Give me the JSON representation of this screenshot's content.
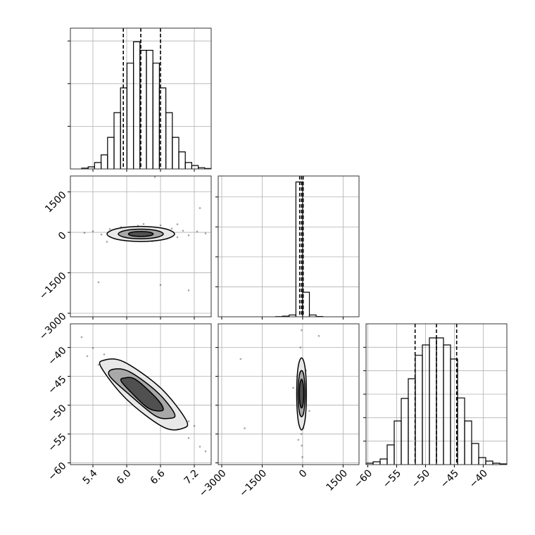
{
  "chart_data": {
    "type": "corner",
    "grid": true,
    "hist_color": "#000000",
    "point_color": "#000000",
    "variables": [
      {
        "lim": [
          5.0,
          7.5
        ],
        "ticks": [
          5.4,
          {
            "value": 6.0,
            "label": "6.0"
          },
          6.6,
          7.2
        ]
      },
      {
        "lim": [
          -3130,
          2090
        ],
        "ticks": [
          {
            "value": -3000,
            "label": "−3000"
          },
          {
            "value": -1500,
            "label": "−1500"
          },
          0,
          1500
        ]
      },
      {
        "lim": [
          -60.3,
          -35.9
        ],
        "ticks": [
          {
            "value": -60,
            "label": "−60"
          },
          {
            "value": -55,
            "label": "−55"
          },
          {
            "value": -50,
            "label": "−50"
          },
          {
            "value": -45,
            "label": "−45"
          },
          {
            "value": -40,
            "label": "−40"
          }
        ]
      }
    ],
    "histograms": [
      {
        "bins": [
          5.2,
          5.315,
          5.43,
          5.545,
          5.66,
          5.775,
          5.89,
          6.005,
          6.12,
          6.235,
          6.35,
          6.465,
          6.58,
          6.695,
          6.81,
          6.925,
          7.04,
          7.155,
          7.27,
          7.385,
          7.5
        ],
        "counts": [
          20,
          50,
          150,
          330,
          740,
          1320,
          1900,
          2480,
          2980,
          2780,
          2780,
          2480,
          1900,
          1320,
          740,
          400,
          150,
          80,
          30,
          10
        ],
        "ylim": [
          0,
          3300
        ],
        "yticks": [
          1000,
          2000,
          3000
        ],
        "quantiles": [
          5.94,
          6.25,
          6.6
        ]
      },
      {
        "bins": [
          -1000,
          -750,
          -500,
          -250,
          0,
          250,
          500,
          750
        ],
        "counts": [
          5,
          20,
          60,
          4500,
          820,
          60,
          10
        ],
        "ylim": [
          0,
          4700
        ],
        "yticks": [
          1000,
          2000,
          3000,
          4000
        ],
        "quantiles": [
          -110,
          -40,
          20
        ]
      },
      {
        "bins": [
          -60.3,
          -59.08,
          -57.86,
          -56.64,
          -55.42,
          -54.2,
          -52.98,
          -51.76,
          -50.54,
          -49.32,
          -48.1,
          -46.88,
          -45.66,
          -44.44,
          -43.22,
          -42.0,
          -40.78,
          -39.56,
          -38.34,
          -37.12,
          -35.9
        ],
        "counts": [
          30,
          60,
          120,
          420,
          930,
          1410,
          1830,
          2330,
          2550,
          2700,
          2700,
          2550,
          2250,
          1420,
          930,
          450,
          150,
          75,
          30,
          15
        ],
        "ylim": [
          0,
          3000
        ],
        "yticks": [
          500,
          1000,
          1500,
          2000,
          2500
        ],
        "quantiles": [
          -51.8,
          -48.1,
          -44.6
        ]
      }
    ],
    "scatters": [
      {
        "x": [
          5.25,
          5.4,
          5.55,
          5.7,
          5.8,
          5.9,
          5.95,
          6.0,
          6.05,
          6.1,
          6.15,
          6.2,
          6.25,
          6.3,
          6.35,
          6.4,
          6.45,
          6.5,
          6.55,
          6.6,
          6.7,
          6.8,
          6.9,
          7.0,
          7.1,
          7.25,
          7.4,
          5.5,
          6.6,
          6.5,
          7.1,
          7.3,
          5.65,
          6.9
        ],
        "y": [
          -20,
          40,
          -80,
          120,
          -150,
          200,
          -260,
          60,
          -300,
          150,
          -200,
          250,
          -60,
          310,
          -240,
          90,
          -330,
          180,
          -120,
          260,
          -70,
          140,
          -180,
          60,
          -110,
          30,
          -40,
          -1850,
          -1950,
          2050,
          -2150,
          900,
          -350,
          300
        ],
        "contours": [
          {
            "color": "#e8e8e8",
            "x": [
              6.85,
              6.67,
              6.25,
              5.83,
              5.65,
              5.83,
              6.25,
              6.67
            ],
            "y": [
              -60,
              138,
              220,
              138,
              -60,
              -258,
              -340,
              -258
            ]
          },
          {
            "color": "#a8a8a8",
            "x": [
              6.65,
              6.53,
              6.25,
              5.97,
              5.85,
              5.97,
              6.25,
              6.53
            ],
            "y": [
              -60,
              67,
              120,
              67,
              -60,
              -187,
              -240,
              -187
            ]
          },
          {
            "color": "#505050",
            "x": [
              6.47,
              6.41,
              6.25,
              6.09,
              6.03,
              6.09,
              6.25,
              6.41
            ],
            "y": [
              -60,
              4,
              30,
              4,
              -60,
              -124,
              -150,
              -124
            ]
          }
        ]
      },
      {
        "x": [
          5.2,
          5.3,
          5.4,
          5.5,
          5.6,
          5.7,
          5.8,
          5.9,
          6.0,
          6.1,
          6.2,
          6.3,
          6.4,
          6.5,
          6.6,
          6.7,
          6.8,
          6.9,
          7.0,
          7.1,
          7.2,
          7.3,
          7.4,
          5.6,
          5.9,
          6.2,
          6.5,
          6.8,
          7.1,
          6.0
        ],
        "y": [
          -38.2,
          -41.5,
          -40.1,
          -43.0,
          -41.2,
          -44.6,
          -42.8,
          -46.3,
          -44.5,
          -47.8,
          -45.9,
          -49.5,
          -47.2,
          -51.0,
          -49.1,
          -52.6,
          -50.4,
          -54.1,
          -52.0,
          -55.7,
          -53.6,
          -57.2,
          -58.0,
          -44.0,
          -43.6,
          -48.7,
          -48.2,
          -53.4,
          -52.8,
          -47.0
        ],
        "contours": [
          {
            "color": "#e8e8e8",
            "x": [
              5.6,
              5.95,
              6.6,
              7.05,
              7.0,
              6.65,
              6.0,
              5.55
            ],
            "y": [
              -42.2,
              -42.5,
              -47,
              -52.5,
              -54,
              -53.8,
              -49,
              -43.5
            ]
          },
          {
            "color": "#a8a8a8",
            "x": [
              5.75,
              6.05,
              6.55,
              6.85,
              6.75,
              6.5,
              6.05,
              5.7
            ],
            "y": [
              -43.8,
              -44.2,
              -47.8,
              -51.5,
              -52.3,
              -51.8,
              -48.2,
              -45
            ]
          },
          {
            "color": "#505050",
            "x": [
              5.95,
              6.15,
              6.5,
              6.65,
              6.55,
              6.35,
              6.05,
              5.9
            ],
            "y": [
              -45.3,
              -45.5,
              -48.5,
              -50.6,
              -51,
              -50.3,
              -47.5,
              -45.8
            ]
          }
        ]
      },
      {
        "x": [
          -40,
          -80,
          0,
          -120,
          40,
          -60,
          -20,
          -150,
          80,
          -100,
          20,
          -50,
          -30,
          -10,
          -90,
          60,
          -70,
          10,
          -130,
          30,
          -2300,
          -2150,
          600,
          -350,
          250,
          -200,
          120,
          -160
        ],
        "y": [
          -37,
          -40,
          -42,
          -44,
          -45,
          -47,
          -49,
          -50,
          -51,
          -52,
          -53,
          -55,
          -57,
          -59,
          -46,
          -48,
          -50,
          -43,
          -49,
          -54,
          -42,
          -54,
          -38,
          -47,
          -51,
          -45,
          -44,
          -56
        ],
        "contours": [
          {
            "color": "#e8e8e8",
            "x": [
              -40,
              90,
              140,
              90,
              -40,
              -170,
              -220,
              -170
            ],
            "y": [
              -41.8,
              -43.5,
              -48,
              -52.5,
              -54.3,
              -52.5,
              -48,
              -43.5
            ]
          },
          {
            "color": "#a8a8a8",
            "x": [
              -40,
              50,
              90,
              50,
              -40,
              -130,
              -170,
              -130
            ],
            "y": [
              -44,
              -45,
              -48,
              -51,
              -52,
              -51,
              -48,
              -45
            ]
          },
          {
            "color": "#505050",
            "x": [
              -40,
              20,
              40,
              20,
              -40,
              -100,
              -120,
              -100
            ],
            "y": [
              -45.5,
              -46.3,
              -48,
              -49.7,
              -50.5,
              -49.7,
              -48,
              -46.3
            ]
          }
        ]
      }
    ]
  }
}
